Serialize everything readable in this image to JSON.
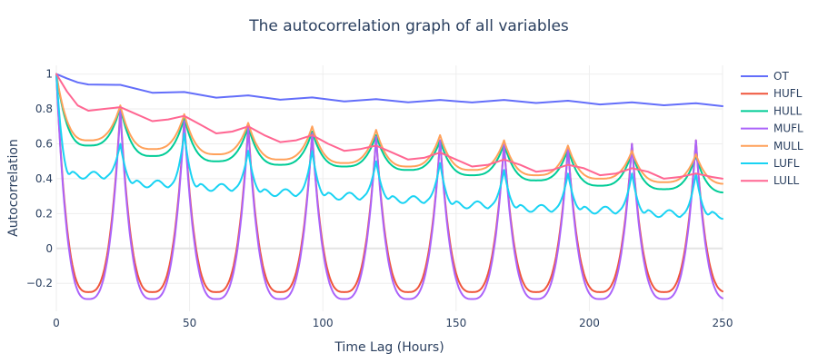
{
  "chart_data": {
    "type": "line",
    "title": "The autocorrelation graph of all variables",
    "xlabel": "Time Lag (Hours)",
    "ylabel": "Autocorrelation",
    "xlim": [
      0,
      250
    ],
    "ylim": [
      -0.36,
      1.05
    ],
    "x_ticks": [
      0,
      50,
      100,
      150,
      200,
      250
    ],
    "y_ticks": [
      -0.2,
      0,
      0.2,
      0.4,
      0.6,
      0.8,
      1
    ],
    "y_tick_labels": [
      "−0.2",
      "0",
      "0.2",
      "0.4",
      "0.6",
      "0.8",
      "1"
    ],
    "grid": true,
    "legend_position": "right",
    "period": 24,
    "series": [
      {
        "name": "OT",
        "color": "#636efa",
        "x": [
          0,
          4,
          8,
          12,
          24,
          36,
          48,
          60,
          72,
          84,
          96,
          108,
          120,
          132,
          144,
          156,
          168,
          180,
          192,
          204,
          216,
          228,
          240,
          250
        ],
        "y": [
          1.0,
          0.975,
          0.952,
          0.94,
          0.938,
          0.893,
          0.897,
          0.865,
          0.878,
          0.853,
          0.866,
          0.843,
          0.856,
          0.838,
          0.852,
          0.837,
          0.852,
          0.834,
          0.847,
          0.826,
          0.838,
          0.821,
          0.833,
          0.816
        ]
      },
      {
        "name": "HUFL",
        "color": "#ef553b",
        "peaks": [
          1.0,
          0.8,
          0.74,
          0.7,
          0.66,
          0.64,
          0.62,
          0.6,
          0.58,
          0.6,
          0.62,
          0.62,
          0.66,
          0.65,
          0.6
        ],
        "troughs": [
          -0.25,
          -0.25,
          -0.25,
          -0.25,
          -0.25,
          -0.25,
          -0.25,
          -0.25,
          -0.25,
          -0.25,
          -0.25,
          -0.22
        ],
        "trough_shape": "broad"
      },
      {
        "name": "HULL",
        "color": "#00cc96",
        "peaks": [
          1.0,
          0.81,
          0.75,
          0.7,
          0.67,
          0.65,
          0.62,
          0.6,
          0.57,
          0.55,
          0.53,
          0.52
        ],
        "troughs": [
          0.59,
          0.53,
          0.5,
          0.48,
          0.47,
          0.45,
          0.42,
          0.39,
          0.36,
          0.34,
          0.32,
          0.31
        ],
        "trough_shape": "broad"
      },
      {
        "name": "MUFL",
        "color": "#ab63fa",
        "peaks": [
          1.0,
          0.79,
          0.73,
          0.69,
          0.66,
          0.64,
          0.62,
          0.6,
          0.58,
          0.6,
          0.62,
          0.62,
          0.64,
          0.63,
          0.6
        ],
        "troughs": [
          -0.29,
          -0.29,
          -0.29,
          -0.29,
          -0.29,
          -0.29,
          -0.29,
          -0.29,
          -0.29,
          -0.29,
          -0.29,
          -0.25
        ],
        "trough_shape": "broad"
      },
      {
        "name": "MULL",
        "color": "#ffa15a",
        "peaks": [
          1.0,
          0.82,
          0.77,
          0.72,
          0.7,
          0.68,
          0.65,
          0.62,
          0.59,
          0.56,
          0.54,
          0.52
        ],
        "troughs": [
          0.62,
          0.57,
          0.54,
          0.51,
          0.49,
          0.47,
          0.45,
          0.42,
          0.4,
          0.38,
          0.37,
          0.36
        ],
        "trough_shape": "broad"
      },
      {
        "name": "LUFL",
        "color": "#19d3f3",
        "peaks": [
          1.0,
          0.6,
          0.66,
          0.56,
          0.56,
          0.5,
          0.49,
          0.45,
          0.43,
          0.43,
          0.43,
          0.41
        ],
        "troughs": [
          0.42,
          0.37,
          0.35,
          0.32,
          0.3,
          0.28,
          0.25,
          0.23,
          0.22,
          0.2,
          0.19,
          0.21
        ],
        "trough_shape": "wavy"
      },
      {
        "name": "LULL",
        "color": "#ff6692",
        "x": [
          0,
          4,
          8,
          12,
          18,
          24,
          30,
          36,
          42,
          48,
          54,
          60,
          66,
          72,
          78,
          84,
          90,
          96,
          102,
          108,
          114,
          120,
          126,
          132,
          138,
          144,
          150,
          156,
          162,
          168,
          174,
          180,
          186,
          192,
          198,
          204,
          210,
          216,
          222,
          228,
          234,
          240,
          246,
          250
        ],
        "y": [
          1.0,
          0.9,
          0.82,
          0.79,
          0.8,
          0.81,
          0.77,
          0.73,
          0.74,
          0.76,
          0.71,
          0.66,
          0.67,
          0.7,
          0.65,
          0.61,
          0.62,
          0.65,
          0.6,
          0.56,
          0.57,
          0.59,
          0.55,
          0.51,
          0.52,
          0.55,
          0.51,
          0.47,
          0.48,
          0.51,
          0.48,
          0.44,
          0.45,
          0.48,
          0.46,
          0.42,
          0.43,
          0.46,
          0.44,
          0.4,
          0.41,
          0.43,
          0.41,
          0.4
        ]
      }
    ]
  }
}
